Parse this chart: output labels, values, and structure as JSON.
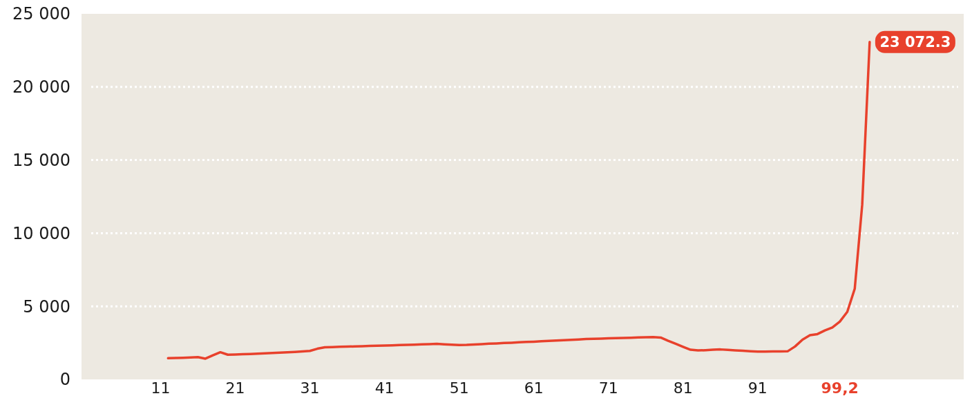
{
  "chart_data": {
    "type": "line",
    "categories": [
      "11",
      null,
      null,
      null,
      null,
      null,
      null,
      null,
      null,
      null,
      "21",
      null,
      null,
      null,
      null,
      null,
      null,
      null,
      null,
      null,
      "31",
      null,
      null,
      null,
      null,
      null,
      null,
      null,
      null,
      null,
      "41",
      null,
      null,
      null,
      null,
      null,
      null,
      null,
      null,
      null,
      "51",
      null,
      null,
      null,
      null,
      null,
      null,
      null,
      null,
      null,
      "61",
      null,
      null,
      null,
      null,
      null,
      null,
      null,
      null,
      null,
      "71",
      null,
      null,
      null,
      null,
      null,
      null,
      null,
      null,
      null,
      "81",
      null,
      null,
      null,
      null,
      null,
      null,
      null,
      null,
      null,
      "91",
      null,
      null,
      null,
      null,
      null,
      null,
      null,
      null,
      null,
      null,
      "99,2",
      null,
      null,
      null,
      null
    ],
    "series": [
      {
        "color": "#e8412c",
        "values": [
          null,
          1450,
          1470,
          1480,
          1500,
          1520,
          1420,
          1650,
          1860,
          1690,
          1700,
          1720,
          1740,
          1760,
          1780,
          1810,
          1830,
          1860,
          1880,
          1910,
          1950,
          2100,
          2200,
          2210,
          2230,
          2240,
          2260,
          2270,
          2290,
          2300,
          2320,
          2330,
          2350,
          2360,
          2380,
          2400,
          2410,
          2430,
          2400,
          2380,
          2350,
          2360,
          2390,
          2410,
          2440,
          2460,
          2490,
          2510,
          2540,
          2560,
          2580,
          2610,
          2630,
          2660,
          2680,
          2710,
          2730,
          2760,
          2780,
          2790,
          2810,
          2820,
          2840,
          2850,
          2870,
          2880,
          2900,
          2860,
          2640,
          2440,
          2230,
          2030,
          1980,
          2000,
          2030,
          2050,
          2020,
          1990,
          1960,
          1930,
          1900,
          1900,
          1910,
          1910,
          1920,
          2250,
          2720,
          3020,
          3100,
          3350,
          3550,
          3950,
          4620,
          6200,
          11950,
          23072.3
        ]
      }
    ],
    "ylim": [
      0,
      25000
    ],
    "yticks": [
      0,
      {
        "value": 5000,
        "label": "5 000"
      },
      {
        "value": 10000,
        "label": "10 000"
      },
      {
        "value": 15000,
        "label": "15 000"
      },
      {
        "value": 20000,
        "label": "20 000"
      },
      {
        "value": 25000,
        "label": "25 000"
      }
    ],
    "grid": "y",
    "marker": "none",
    "line_style": "solid",
    "annotations": [
      "23 072.3"
    ]
  }
}
